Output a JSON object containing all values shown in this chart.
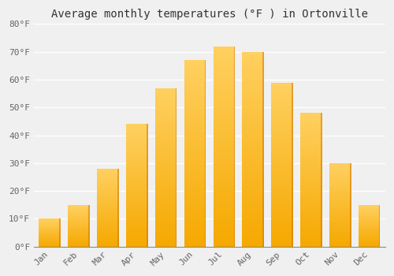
{
  "title": "Average monthly temperatures (°F ) in Ortonville",
  "months": [
    "Jan",
    "Feb",
    "Mar",
    "Apr",
    "May",
    "Jun",
    "Jul",
    "Aug",
    "Sep",
    "Oct",
    "Nov",
    "Dec"
  ],
  "values": [
    10,
    15,
    28,
    44,
    57,
    67,
    72,
    70,
    59,
    48,
    30,
    15
  ],
  "bar_color_bottom": "#F5A800",
  "bar_color_top": "#FFD060",
  "bar_color_right_edge": "#E08000",
  "ylim": [
    0,
    80
  ],
  "yticks": [
    0,
    10,
    20,
    30,
    40,
    50,
    60,
    70,
    80
  ],
  "ytick_labels": [
    "0°F",
    "10°F",
    "20°F",
    "30°F",
    "40°F",
    "50°F",
    "60°F",
    "70°F",
    "80°F"
  ],
  "background_color": "#f0f0f0",
  "grid_color": "#ffffff",
  "title_fontsize": 10,
  "tick_fontsize": 8,
  "bar_width": 0.75
}
